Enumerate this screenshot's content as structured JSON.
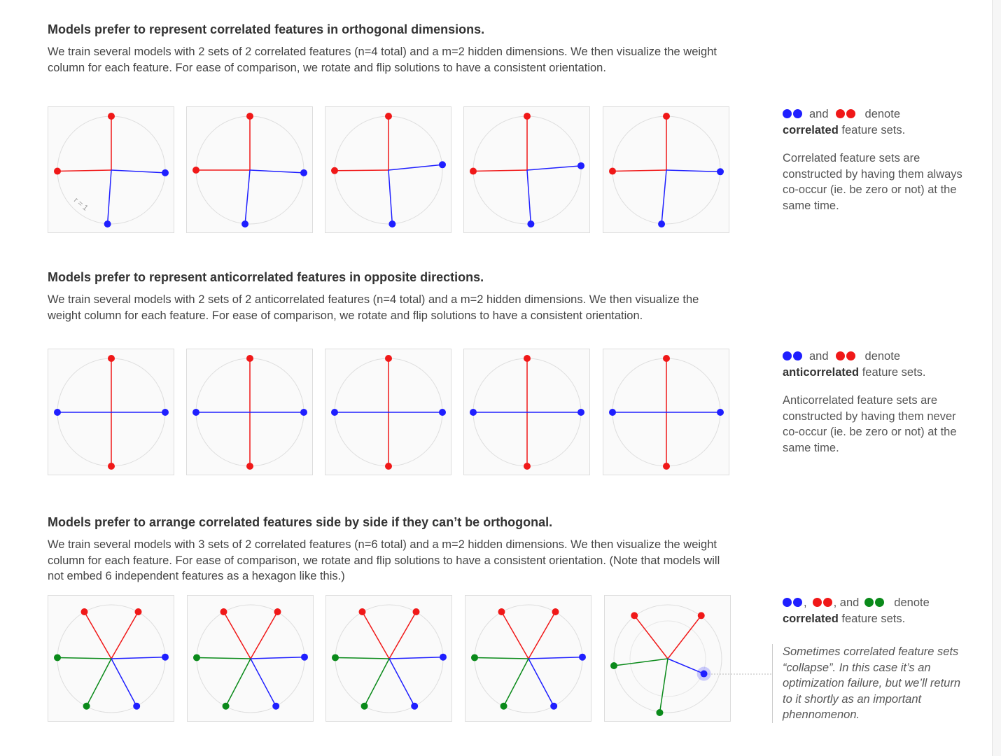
{
  "sections": [
    {
      "title": "Models prefer to represent correlated features in orthogonal dimensions.",
      "description": "We train several models with 2 sets of 2 correlated features (n=4 total) and a m=2 hidden dimensions. We then visualize the weight column for each feature. For ease of comparison, we rotate and flip solutions to have a consistent orientation.",
      "radius_label": "r = 1",
      "legend": {
        "joiners": [
          "and"
        ],
        "verb": "denote",
        "emphasis": "correlated",
        "rest": "feature sets."
      },
      "note": "Correlated feature sets are constructed by having them always co-occur (ie. be zero or not) at the same time."
    },
    {
      "title": "Models prefer to represent anticorrelated features in opposite directions.",
      "description": "We train several models with 2 sets of 2 anticorrelated features (n=4 total) and a m=2 hidden dimensions. We then visualize the weight column for each feature. For ease of comparison, we rotate and flip solutions to have a consistent orientation.",
      "legend": {
        "joiners": [
          "and"
        ],
        "verb": "denote",
        "emphasis": "anticorrelated",
        "rest": "feature sets."
      },
      "note": "Anticorrelated feature sets are constructed by having them never co-occur (ie. be zero or not) at the same time."
    },
    {
      "title": "Models prefer to arrange correlated features side by side if they can’t be orthogonal.",
      "description": "We train several models with 3 sets of 2 correlated features (n=6 total) and a m=2 hidden dimensions. We then visualize the weight column for each feature. For ease of comparison, we rotate and flip solutions to have a consistent orientation. (Note that models will not embed 6 independent features as a hexagon like this.)",
      "legend": {
        "joiners": [
          ",",
          ", and"
        ],
        "verb": "denote",
        "emphasis": "correlated",
        "rest": "feature sets."
      },
      "note": "Sometimes correlated feature sets “collapse”. In this case it’s an optimization failure, but we’ll return to it shortly as an important phennomenon."
    }
  ]
}
